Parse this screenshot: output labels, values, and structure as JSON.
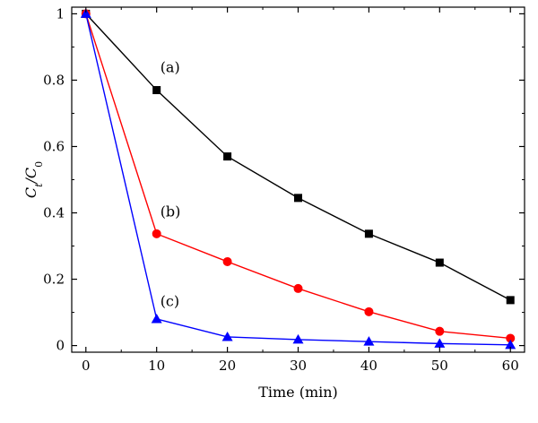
{
  "chart_data": {
    "type": "line",
    "xlabel": "Time (min)",
    "ylabel_main": "C",
    "ylabel_sub1": "t",
    "ylabel_sep": "/C",
    "ylabel_sub2": "0",
    "xlim": [
      -2,
      62
    ],
    "ylim": [
      -0.02,
      1.02
    ],
    "x_ticks": [
      0,
      10,
      20,
      30,
      40,
      50,
      60
    ],
    "x_tick_labels": [
      "0",
      "10",
      "20",
      "30",
      "40",
      "50",
      "60"
    ],
    "y_ticks": [
      0,
      0.2,
      0.4,
      0.6,
      0.8,
      1
    ],
    "y_tick_labels": [
      "0",
      "0.2",
      "0.4",
      "0.6",
      "0.8",
      "1"
    ],
    "grid": false,
    "x": [
      0,
      10,
      20,
      30,
      40,
      50,
      60
    ],
    "series": [
      {
        "label": "(a)",
        "color": "#000000",
        "marker": "square",
        "values": [
          1.0,
          0.77,
          0.57,
          0.445,
          0.337,
          0.25,
          0.137
        ],
        "label_anchor": [
          10,
          0.84
        ]
      },
      {
        "label": "(b)",
        "color": "#ff0000",
        "marker": "circle",
        "values": [
          1.0,
          0.337,
          0.253,
          0.172,
          0.102,
          0.043,
          0.022
        ],
        "label_anchor": [
          10,
          0.405
        ]
      },
      {
        "label": "(c)",
        "color": "#0000ff",
        "marker": "triangle",
        "values": [
          1.0,
          0.08,
          0.026,
          0.018,
          0.012,
          0.006,
          0.002
        ],
        "label_anchor": [
          10,
          0.135
        ]
      }
    ]
  }
}
